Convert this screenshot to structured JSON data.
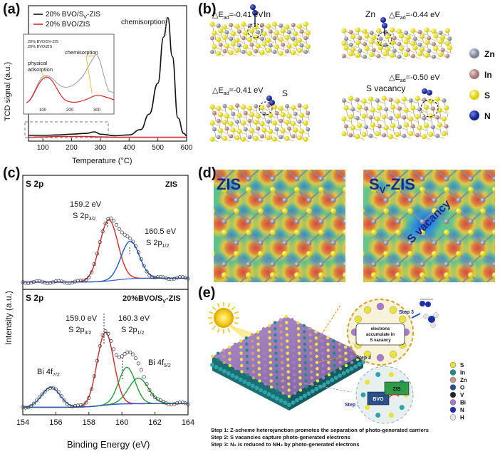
{
  "panel_a": {
    "label": "(a)",
    "ylabel": "TCD signal (a.u.)",
    "xlabel": "Temperature (°C)",
    "legend": [
      "20% BVO/S",
      "V",
      "-ZIS",
      "20% BVO/ZIS"
    ],
    "annotation": "chemisorption",
    "inset": {
      "legend": [
        "20% BVO/SV-ZIS",
        "20% BVO/ZIS"
      ],
      "ann_phys_1": "physical",
      "ann_phys_2": "adsorption",
      "ann_chem": "chemisorption",
      "ticks": [
        "100",
        "200",
        "300"
      ]
    },
    "colors": {
      "sv_zis": "#111111",
      "zis": "#d62728"
    }
  },
  "panel_b": {
    "label": "(b)",
    "sites": [
      {
        "prefix": "△E",
        "sub": "ad",
        "value": "=-0.41 eV",
        "site": "In"
      },
      {
        "prefix": "△E",
        "sub": "ad",
        "value": "=-0.44 eV",
        "site": "Zn"
      },
      {
        "prefix": "△E",
        "sub": "ad",
        "value": "=-0.41 eV",
        "site": "S"
      },
      {
        "prefix": "△E",
        "sub": "ad",
        "value": "=-0.50 eV",
        "site": "S vacancy"
      }
    ],
    "legend": [
      {
        "name": "Zn",
        "color": "#8f95a8"
      },
      {
        "name": "In",
        "color": "#b88c8a"
      },
      {
        "name": "S",
        "color": "#e6e01c"
      },
      {
        "name": "N",
        "color": "#1c2fa8"
      }
    ]
  },
  "panel_c": {
    "label": "(c)",
    "ylabel": "Intensity (a.u.)",
    "xlabel": "Binding Energy (eV)",
    "top": {
      "title": "S 2p",
      "sample": "ZIS",
      "peak1_ev": "159.2 eV",
      "peak1_main": "S 2p",
      "peak1_sub": "3/2",
      "peak2_ev": "160.5 eV",
      "peak2_main": "S 2p",
      "peak2_sub": "1/2"
    },
    "bottom": {
      "title": "S 2p",
      "sample": "20%BVO/S",
      "sample_sub": "V",
      "sample_suffix": "-ZIS",
      "peak1_ev": "159.0 eV",
      "peak1_main": "S 2p",
      "peak1_sub": "3/2",
      "peak2_ev": "160.3 eV",
      "peak2_main": "S 2p",
      "peak2_sub": "1/2",
      "bi1_main": "Bi 4f",
      "bi1_sub": "7/2",
      "bi2_main": "Bi 4f",
      "bi2_sub": "5/2"
    },
    "xticks": [
      "154",
      "156",
      "158",
      "160",
      "162",
      "164"
    ]
  },
  "panel_d": {
    "label": "(d)",
    "left_title": "ZIS",
    "right_title_main": "S",
    "right_title_sub": "V",
    "right_title_suffix": "-ZIS",
    "vacancy_label": "S vacancy"
  },
  "panel_e": {
    "label": "(e)",
    "step1_label": "Step 1",
    "step2_label": "Step 2",
    "step3_label": "Step 3",
    "bubble_text": [
      "electrons",
      "accumulate in",
      "S vacancy"
    ],
    "bvo_label": "BVO",
    "zis_label": "ZIS",
    "legend": [
      {
        "name": "S",
        "color": "#e8e23a"
      },
      {
        "name": "In",
        "color": "#1f8a8c"
      },
      {
        "name": "Zn",
        "color": "#c79a8c"
      },
      {
        "name": "O",
        "color": "#2a4f8c"
      },
      {
        "name": "V",
        "color": "#222222"
      },
      {
        "name": "Bi",
        "color": "#a67cc6"
      },
      {
        "name": "N",
        "color": "#1c2fa8"
      },
      {
        "name": "H",
        "color": "#e5e5e5"
      }
    ],
    "captions": [
      "Step 1: Z-scheme heterojunction promotes the separation of photo-generated carriers",
      "Step 2: S vacancies capture photo-generated electrons",
      "Step 3: N₂ is reduced  to NH₃ by photo-generated electrons"
    ]
  },
  "chart_data": [
    {
      "type": "line",
      "title": "",
      "xlabel": "Temperature (°C)",
      "ylabel": "TCD signal (a.u.)",
      "xlim": [
        50,
        600
      ],
      "xticks": [
        100,
        200,
        300,
        400,
        500,
        600
      ],
      "series": [
        {
          "name": "20% BVO/SV-ZIS",
          "x": [
            50,
            100,
            150,
            200,
            250,
            280,
            300,
            350,
            400,
            440,
            470,
            500,
            520,
            535,
            550,
            570,
            590,
            600
          ],
          "y": [
            0.15,
            0.15,
            0.16,
            0.18,
            0.2,
            0.24,
            0.18,
            0.14,
            0.16,
            0.3,
            0.7,
            1.5,
            2.7,
            3.2,
            2.2,
            0.6,
            0.2,
            0.14
          ]
        },
        {
          "name": "20% BVO/ZIS",
          "x": [
            50,
            100,
            150,
            200,
            250,
            300,
            350,
            400,
            450,
            500,
            550,
            600
          ],
          "y": [
            0.1,
            0.11,
            0.12,
            0.12,
            0.12,
            0.11,
            0.1,
            0.1,
            0.1,
            0.1,
            0.1,
            0.1
          ]
        }
      ]
    },
    {
      "type": "line",
      "title": "S 2p — ZIS",
      "xlabel": "Binding Energy (eV)",
      "ylabel": "Intensity (a.u.)",
      "xlim": [
        154,
        164
      ],
      "series": [
        {
          "name": "S 2p3/2",
          "center": 159.2
        },
        {
          "name": "S 2p1/2",
          "center": 160.5
        }
      ]
    },
    {
      "type": "line",
      "title": "S 2p — 20%BVO/SV-ZIS",
      "xlabel": "Binding Energy (eV)",
      "ylabel": "Intensity (a.u.)",
      "xlim": [
        154,
        164
      ],
      "series": [
        {
          "name": "Bi 4f7/2",
          "center": 155.7
        },
        {
          "name": "S 2p3/2",
          "center": 159.0
        },
        {
          "name": "S 2p1/2",
          "center": 160.3
        },
        {
          "name": "Bi 4f5/2",
          "center": 161.0
        }
      ]
    }
  ]
}
